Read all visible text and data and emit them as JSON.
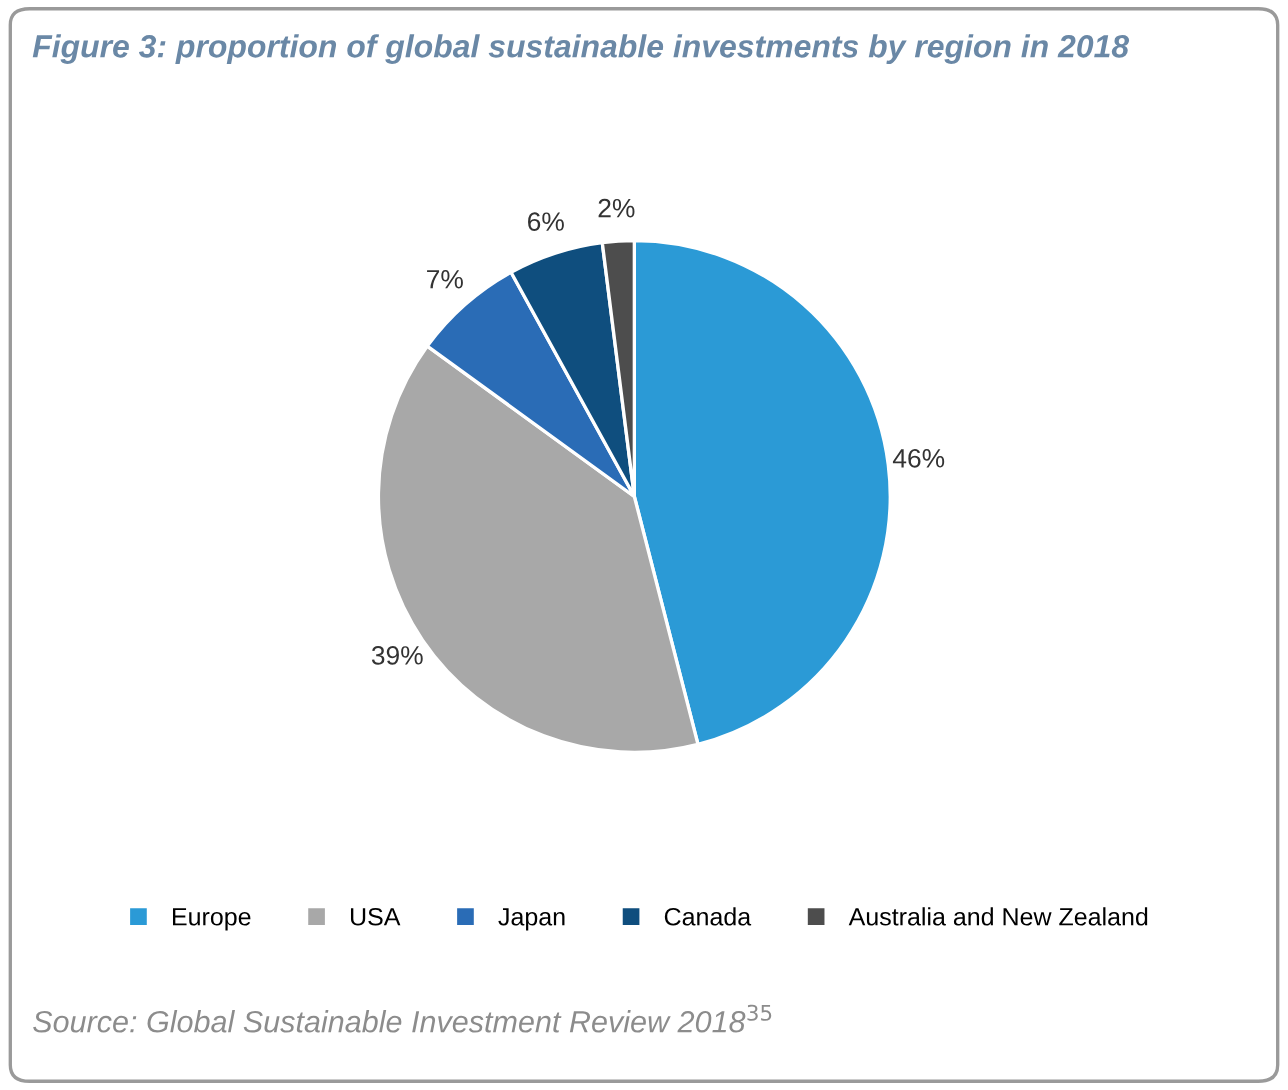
{
  "chart_data": {
    "type": "pie",
    "title": "Figure 3: proportion of global sustainable investments by region in 2018",
    "categories": [
      "Europe",
      "USA",
      "Japan",
      "Canada",
      "Australia and New Zealand"
    ],
    "values": [
      46,
      39,
      7,
      6,
      2
    ],
    "colors": [
      "#2b9ad6",
      "#a8a8a8",
      "#2a6cb6",
      "#0f4e7e",
      "#4d4d4d"
    ],
    "value_labels": [
      "46%",
      "39%",
      "7%",
      "6%",
      "2%"
    ],
    "legend": "bottom",
    "annotations": [
      "Source: Global Sustainable Investment Review 2018$^{35}$"
    ]
  }
}
